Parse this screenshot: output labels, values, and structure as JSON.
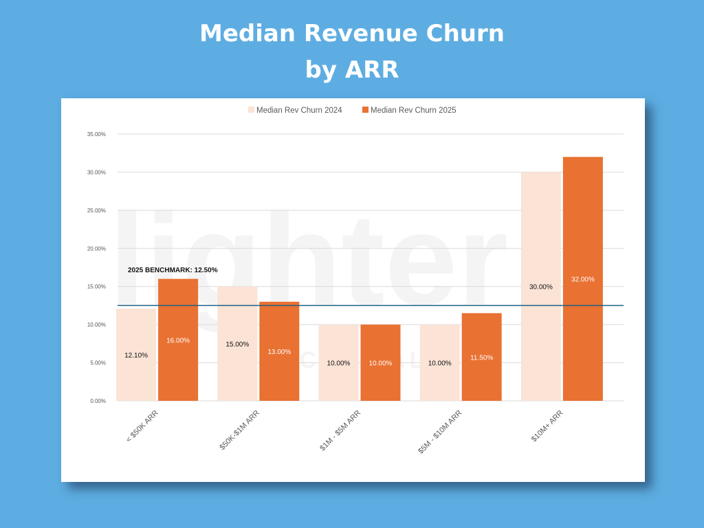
{
  "page": {
    "title_line1": "Median Revenue Churn",
    "title_line2": "by ARR",
    "watermark_line1": "lighter",
    "watermark_line2": "CAPITAL"
  },
  "colors": {
    "background": "#5dade2",
    "series_2024": "#fbe3d6",
    "series_2025": "#e97132",
    "benchmark_line": "#1f5f85"
  },
  "chart_data": {
    "type": "bar",
    "categories": [
      "< $50K ARR",
      "$50K-$1M ARR",
      "$1M - $5M ARR",
      "$5M - $10M ARR",
      "$10M+ ARR"
    ],
    "series": [
      {
        "name": "Median Rev Churn 2024",
        "values": [
          12.1,
          15.0,
          10.0,
          10.0,
          30.0
        ],
        "labels": [
          "12.10%",
          "15.00%",
          "10.00%",
          "10.00%",
          "30.00%"
        ]
      },
      {
        "name": "Median Rev Churn 2025",
        "values": [
          16.0,
          13.0,
          10.0,
          11.5,
          32.0
        ],
        "labels": [
          "16.00%",
          "13.00%",
          "10.00%",
          "11.50%",
          "32.00%"
        ]
      }
    ],
    "ylim": [
      0,
      35
    ],
    "yticks": [
      0,
      5,
      10,
      15,
      20,
      25,
      30,
      35
    ],
    "ytick_labels": [
      "0.00%",
      "5.00%",
      "10.00%",
      "15.00%",
      "20.00%",
      "25.00%",
      "30.00%",
      "35.00%"
    ],
    "benchmark": {
      "value": 12.5,
      "label": "2025 BENCHMARK: 12.50%"
    },
    "legend_position": "top",
    "grid": true
  }
}
